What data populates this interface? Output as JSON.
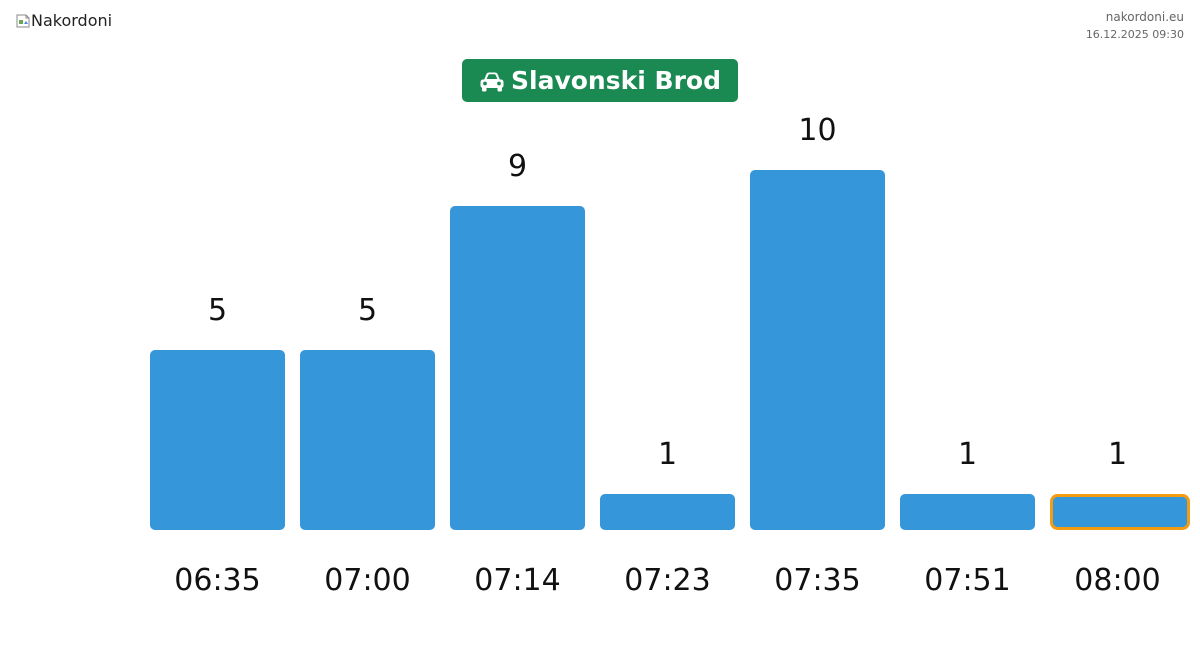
{
  "header": {
    "logo_alt": "Nakordoni",
    "site": "nakordoni.eu",
    "timestamp": "16.12.2025 09:30"
  },
  "badge": {
    "icon": "car-icon",
    "label": "Slavonski Brod",
    "color": "#1a8a52"
  },
  "chart_data": {
    "type": "bar",
    "categories": [
      "06:35",
      "07:00",
      "07:14",
      "07:23",
      "07:35",
      "07:51",
      "08:00"
    ],
    "values": [
      5,
      5,
      9,
      1,
      10,
      1,
      1
    ],
    "title": "",
    "xlabel": "",
    "ylabel": "",
    "ylim": [
      0,
      10
    ],
    "grid": false,
    "highlight_index": 6,
    "bar_color": "#3597da",
    "highlight_color": "#f39c12",
    "label_color": "#111111"
  }
}
